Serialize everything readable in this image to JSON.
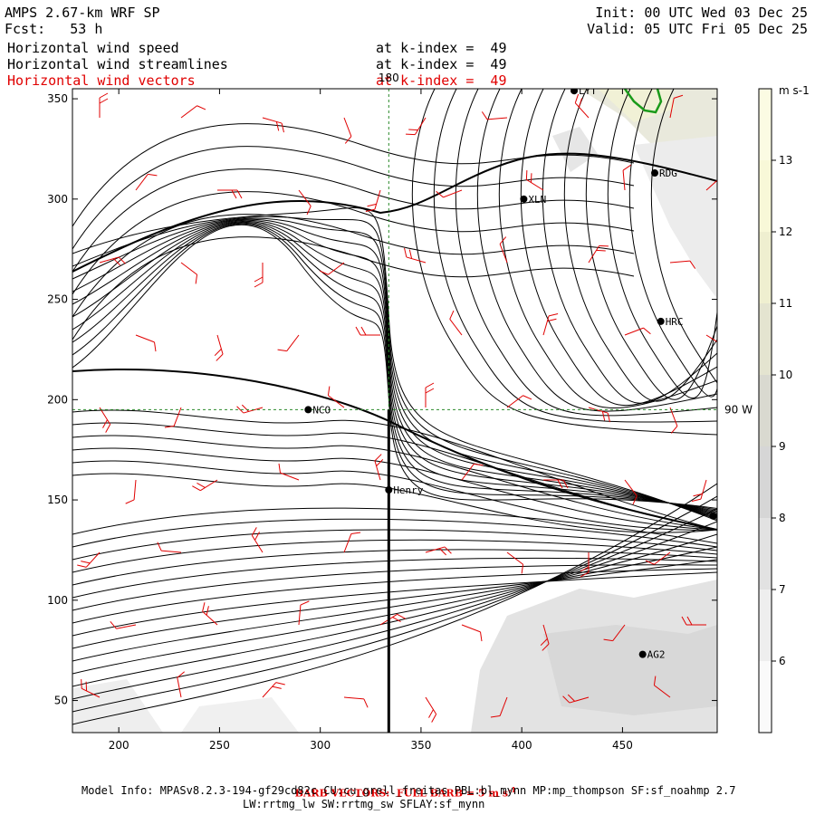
{
  "header": {
    "model": "AMPS 2.67-km WRF SP",
    "forecast": "Fcst:   53 h",
    "init": "Init: 00 UTC Wed 03 Dec 25",
    "valid": "Valid: 05 UTC Fri 05 Dec 25",
    "fields": [
      {
        "name": "Horizontal wind speed",
        "level": "at k-index =  49",
        "color": "#000000"
      },
      {
        "name": "Horizontal wind streamlines",
        "level": "at k-index =  49",
        "color": "#000000"
      },
      {
        "name": "Horizontal wind vectors",
        "level": "at k-index =  49",
        "color": "#e00000"
      }
    ]
  },
  "chart_data": {
    "type": "heatmap",
    "x_ticks": [
      200,
      250,
      300,
      350,
      400,
      450
    ],
    "y_ticks": [
      50,
      100,
      150,
      200,
      250,
      300,
      350
    ],
    "xlim": [
      177,
      497
    ],
    "ylim": [
      34,
      355
    ],
    "meridian_label": "180",
    "parallel_label": "90 W",
    "meridian_x": 334,
    "parallel_y": 195,
    "cross_section": {
      "x": 334,
      "y_from": 34,
      "y_to": 195
    },
    "stations": [
      {
        "name": "LYT",
        "x": 426,
        "y": 354
      },
      {
        "name": "RDG",
        "x": 466,
        "y": 313
      },
      {
        "name": "XLN",
        "x": 401,
        "y": 300
      },
      {
        "name": "HRC",
        "x": 469,
        "y": 239
      },
      {
        "name": "NCO",
        "x": 294,
        "y": 195
      },
      {
        "name": "Henry",
        "x": 334,
        "y": 155
      },
      {
        "name": "AG2",
        "x": 460,
        "y": 73
      },
      {
        "name": "",
        "x": 495,
        "y": 142
      }
    ],
    "colorbar": {
      "unit": "m s-1",
      "ticks": [
        6,
        7,
        8,
        9,
        10,
        11,
        12,
        13
      ],
      "colors": [
        "#fafafa",
        "#eeeeee",
        "#e2e2e2",
        "#d6d6d6",
        "#d9d9d0",
        "#e4e4d0",
        "#efefd0",
        "#f8f8d8",
        "#fbfbe3"
      ]
    },
    "grid": true
  },
  "footer": {
    "barb_note": "BARB VECTORS:  FULL BARB = 5 m s",
    "barb_sup": "-1",
    "model_info": "Model Info: MPASv8.2.3-194-gf29cd82c CU:cu_grell_freitas PBL:bl_mynn MP:mp_thompson SF:sf_noahmp 2.7",
    "model_info2": "LW:rrtmg_lw SW:rrtmg_sw SFLAY:sf_mynn"
  },
  "colors": {
    "barb": "#e00000",
    "grid": "#2a8a2a",
    "coast": "#1a9a1a"
  }
}
